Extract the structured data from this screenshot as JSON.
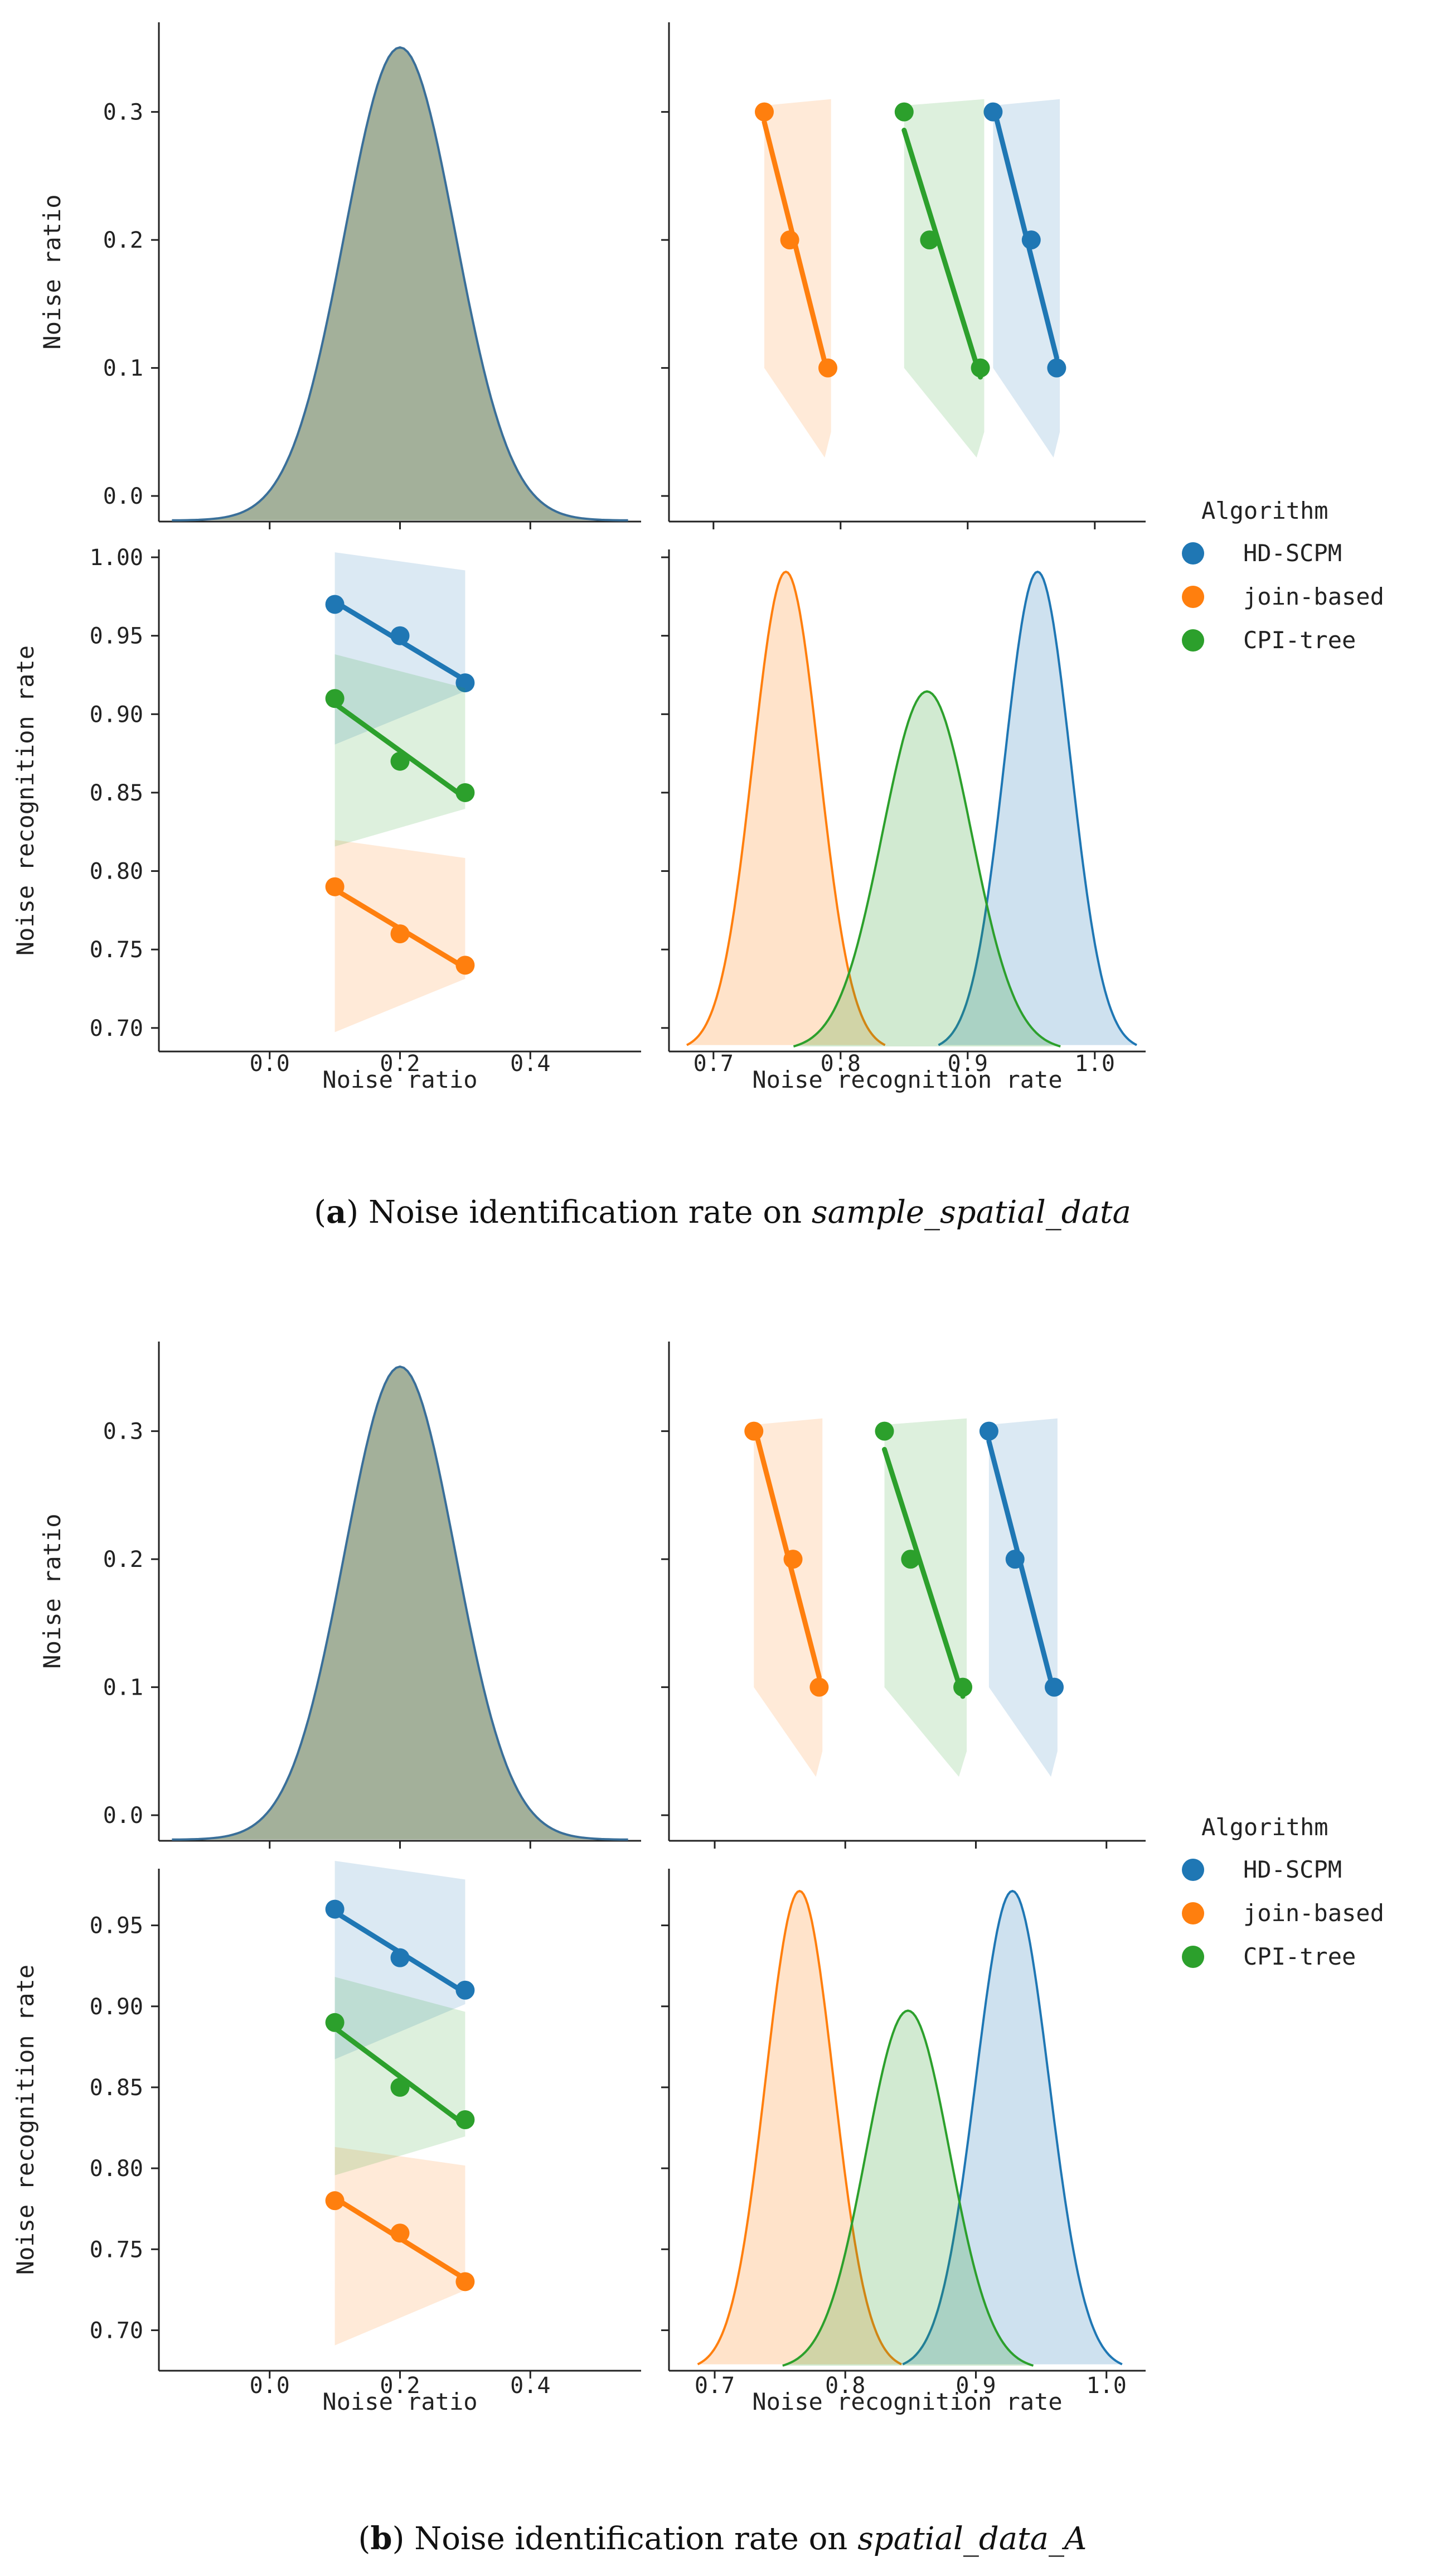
{
  "algorithms": [
    "HD-SCPM",
    "join-based",
    "CPI-tree"
  ],
  "colors": {
    "HD-SCPM": "#1f77b4",
    "join-based": "#ff7f0e",
    "CPI-tree": "#2ca02c",
    "noise_kde_fill": "#a3b09a",
    "noise_kde_line": "#3a6f99"
  },
  "legend": {
    "title": "Algorithm",
    "labels": [
      "HD-SCPM",
      "join-based",
      "CPI-tree"
    ]
  },
  "captions": [
    {
      "paren_open": "(",
      "bold": "a",
      "rest": ") Noise identification rate on ",
      "italic": "sample_spatial_data"
    },
    {
      "paren_open": "(",
      "bold": "b",
      "rest": ") Noise identification rate on ",
      "italic": "spatial_data_A"
    }
  ],
  "chart_data": [
    {
      "type": "pairplot",
      "panel_id": "a",
      "hue": "Algorithm",
      "variables": [
        "Noise ratio",
        "Noise recognition rate"
      ],
      "xlabels": [
        "Noise ratio",
        "Noise recognition rate"
      ],
      "ylabels": [
        "Noise ratio",
        "Noise recognition rate"
      ],
      "noise_ratio_ticks": [
        "0.0",
        "0.1",
        "0.2",
        "0.3"
      ],
      "noise_ratio_xticks": [
        "0.0",
        "0.2",
        "0.4"
      ],
      "rate_yticks": [
        "0.70",
        "0.75",
        "0.80",
        "0.85",
        "0.90",
        "0.95",
        "1.00"
      ],
      "rate_xticks": [
        "0.7",
        "0.8",
        "0.9",
        "1.0"
      ],
      "noise_ratio_lim": [
        -0.02,
        0.37
      ],
      "noise_ratio_xlim": [
        -0.17,
        0.57
      ],
      "rate_ylim": [
        0.685,
        1.005
      ],
      "rate_xlim": [
        0.665,
        1.04
      ],
      "noise_ratio_kde": {
        "mean": 0.2,
        "sd": 0.085,
        "peak_y": 0.35,
        "x_range": [
          -0.15,
          0.55
        ]
      },
      "series": [
        {
          "name": "HD-SCPM",
          "noise_ratio": [
            0.1,
            0.2,
            0.3
          ],
          "recognition_rate": [
            0.97,
            0.95,
            0.92
          ],
          "kde_peak": 0.955,
          "kde_sd": 0.026
        },
        {
          "name": "join-based",
          "noise_ratio": [
            0.1,
            0.2,
            0.3
          ],
          "recognition_rate": [
            0.79,
            0.76,
            0.74
          ],
          "kde_peak": 0.757,
          "kde_sd": 0.026
        },
        {
          "name": "CPI-tree",
          "noise_ratio": [
            0.1,
            0.2,
            0.3
          ],
          "recognition_rate": [
            0.91,
            0.87,
            0.85
          ],
          "kde_peak": 0.868,
          "kde_sd": 0.035
        }
      ]
    },
    {
      "type": "pairplot",
      "panel_id": "b",
      "hue": "Algorithm",
      "variables": [
        "Noise ratio",
        "Noise recognition rate"
      ],
      "xlabels": [
        "Noise ratio",
        "Noise recognition rate"
      ],
      "ylabels": [
        "Noise ratio",
        "Noise recognition rate"
      ],
      "noise_ratio_ticks": [
        "0.0",
        "0.1",
        "0.2",
        "0.3"
      ],
      "noise_ratio_xticks": [
        "0.0",
        "0.2",
        "0.4"
      ],
      "rate_yticks": [
        "0.70",
        "0.75",
        "0.80",
        "0.85",
        "0.90",
        "0.95"
      ],
      "rate_xticks": [
        "0.7",
        "0.8",
        "0.9",
        "1.0"
      ],
      "noise_ratio_lim": [
        -0.02,
        0.37
      ],
      "noise_ratio_xlim": [
        -0.17,
        0.57
      ],
      "rate_ylim": [
        0.675,
        0.985
      ],
      "rate_xlim": [
        0.665,
        1.03
      ],
      "noise_ratio_kde": {
        "mean": 0.2,
        "sd": 0.085,
        "peak_y": 0.35,
        "x_range": [
          -0.15,
          0.55
        ]
      },
      "series": [
        {
          "name": "HD-SCPM",
          "noise_ratio": [
            0.1,
            0.2,
            0.3
          ],
          "recognition_rate": [
            0.96,
            0.93,
            0.91
          ],
          "kde_peak": 0.928,
          "kde_sd": 0.028
        },
        {
          "name": "join-based",
          "noise_ratio": [
            0.1,
            0.2,
            0.3
          ],
          "recognition_rate": [
            0.78,
            0.76,
            0.73
          ],
          "kde_peak": 0.765,
          "kde_sd": 0.026
        },
        {
          "name": "CPI-tree",
          "noise_ratio": [
            0.1,
            0.2,
            0.3
          ],
          "recognition_rate": [
            0.89,
            0.85,
            0.83
          ],
          "kde_peak": 0.848,
          "kde_sd": 0.032
        }
      ]
    }
  ]
}
